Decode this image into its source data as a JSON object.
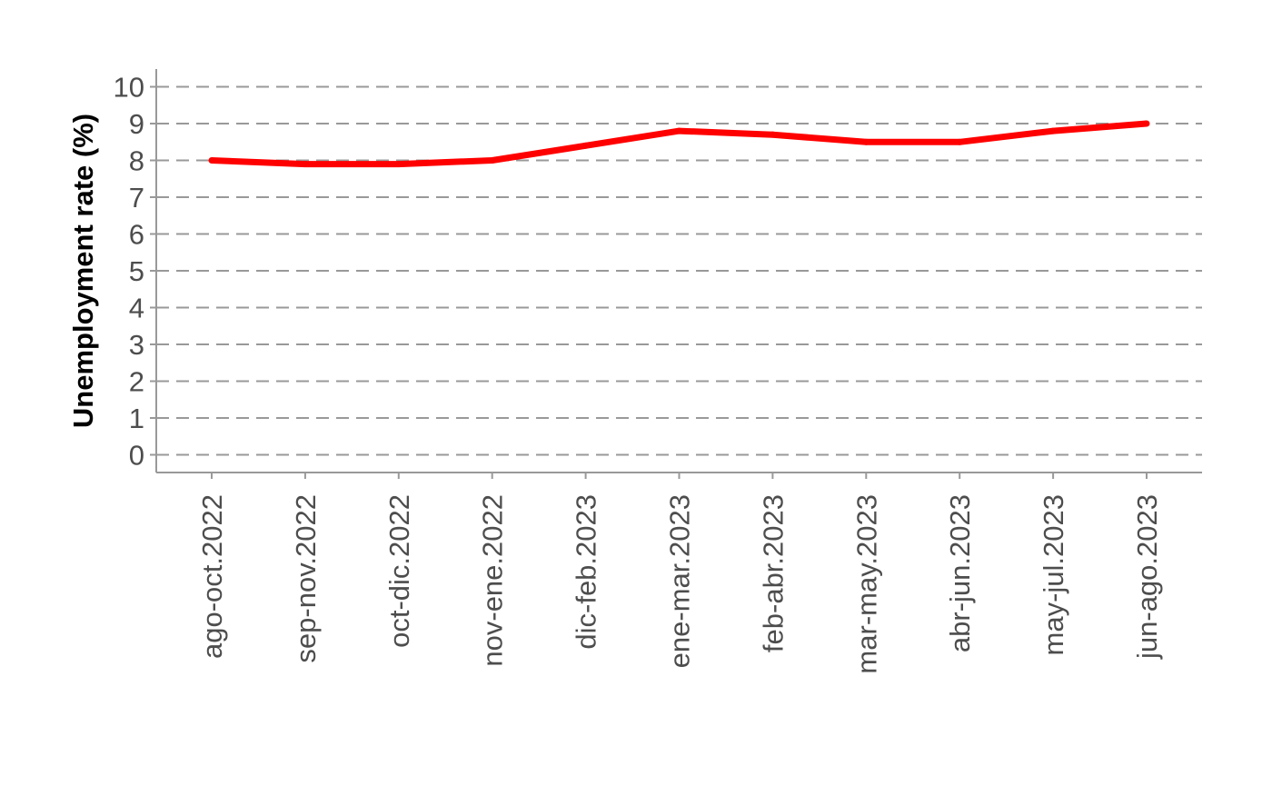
{
  "chart_data": {
    "type": "line",
    "title": "",
    "xlabel": "",
    "ylabel": "Unemployment rate (%)",
    "categories": [
      "ago-oct.2022",
      "sep-nov.2022",
      "oct-dic.2022",
      "nov-ene.2022",
      "dic-feb.2023",
      "ene-mar.2023",
      "feb-abr.2023",
      "mar-may.2023",
      "abr-jun.2023",
      "may-jul.2023",
      "jun-ago.2023"
    ],
    "series": [
      {
        "values": [
          8.0,
          7.9,
          7.9,
          8.0,
          8.4,
          8.8,
          8.7,
          8.5,
          8.5,
          8.8,
          9.0
        ],
        "color": "#ff0000"
      }
    ],
    "ylim": [
      -0.5,
      10.5
    ],
    "yticks": [
      0,
      1,
      2,
      3,
      4,
      5,
      6,
      7,
      8,
      9,
      10
    ],
    "grid": "horizontal dashed",
    "grid_color": "#999999",
    "axis_color": "#999999",
    "legend": "none"
  }
}
